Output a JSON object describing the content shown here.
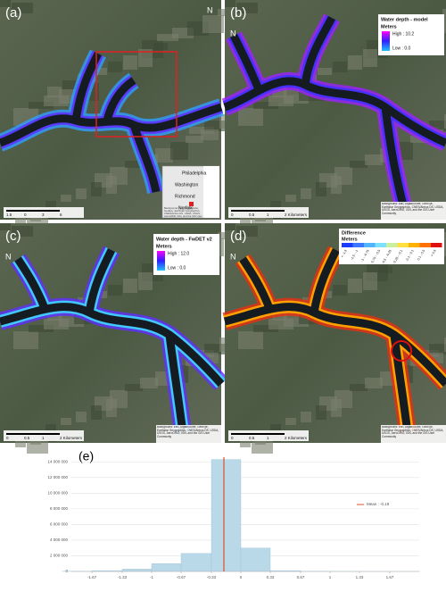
{
  "panels": [
    {
      "label": "(a)",
      "scale": [
        "1.5",
        "0",
        "3",
        "6"
      ],
      "attribution": "Background: Esri, DigitalGlobe, GeoEye, Earthstar Geographics, CNES/Airbus DS, USDA, USGS, AeroGRID, IGN, and the GIS User Community",
      "inset": {
        "cities": [
          "Philadelphia",
          "Washington",
          "Richmond",
          "Norfolk"
        ]
      }
    },
    {
      "label": "(b)",
      "scale": [
        "0",
        "0.5",
        "1",
        "2 Kilometers"
      ],
      "attribution": "Background: Esri, DigitalGlobe, GeoEye, Earthstar Geographics, CNES/Airbus DS, USDA, USGS, AeroGRID, IGN, and the GIS User Community",
      "legend": {
        "title": "Water depth - model",
        "unit": "Meters",
        "high": "High : 10.2",
        "low": "Low : 0.0"
      }
    },
    {
      "label": "(c)",
      "scale": [
        "0",
        "0.5",
        "1",
        "2 Kilometers"
      ],
      "attribution": "Background: Esri, DigitalGlobe, GeoEye, Earthstar Geographics, CNES/Airbus DS, USDA, USGS, AeroGRID, IGN, and the GIS User Community",
      "legend": {
        "title": "Water depth - FwDET v2",
        "unit": "Meters",
        "high": "High : 12.0",
        "low": "Low : 0.0"
      }
    },
    {
      "label": "(d)",
      "scale": [
        "0",
        "0.5",
        "1",
        "2 Kilometers"
      ],
      "attribution": "Background: Esri, DigitalGlobe, GeoEye, Earthstar Geographics, CNES/Airbus DS, USDA, USGS, AeroGRID, IGN, and the GIS User Community",
      "legend": {
        "title": "Difference",
        "unit": "Meters",
        "classes": [
          "< -1.5",
          "-1.5 - -1",
          "-1 - -0.75",
          "-0.75 - -0.5",
          "-0.5 - -0.25",
          "-0.25 - -0.1",
          "-0.1 - 0.1",
          "0.1 - 0.5",
          "> 0.5"
        ]
      }
    }
  ],
  "chart_data": {
    "type": "histogram",
    "label": "(e)",
    "bins": [
      -2,
      -1.67,
      -1.33,
      -1,
      -0.67,
      -0.33,
      0,
      0.33,
      0.67,
      1,
      1.33,
      1.67,
      2
    ],
    "values": [
      20000,
      100000,
      300000,
      1000000,
      2300000,
      14300000,
      3000000,
      100000,
      20000,
      10000,
      5000,
      2000
    ],
    "color": "#b9d8e8",
    "xlim": [
      -1.9,
      2.0
    ],
    "xticks": [
      -1.67,
      -1.33,
      -1,
      -0.67,
      -0.33,
      0,
      0.33,
      0.67,
      1,
      1.33,
      1.67
    ],
    "ylim": [
      0,
      14600000
    ],
    "yticks": [
      0,
      {
        "value": 2000000,
        "label": "2 000 000"
      },
      {
        "value": 4000000,
        "label": "4 000 000"
      },
      {
        "value": 6000000,
        "label": "6 000 000"
      },
      {
        "value": 8000000,
        "label": "8 000 000"
      },
      {
        "value": 10000000,
        "label": "10 000 000"
      },
      {
        "value": 12000000,
        "label": "12 000 000"
      },
      {
        "value": 14000000,
        "label": "14 000 000"
      }
    ],
    "grid": true,
    "mean": -0.19,
    "mean_label": "Mean : -0.19",
    "mean_color": "#d9532b"
  }
}
